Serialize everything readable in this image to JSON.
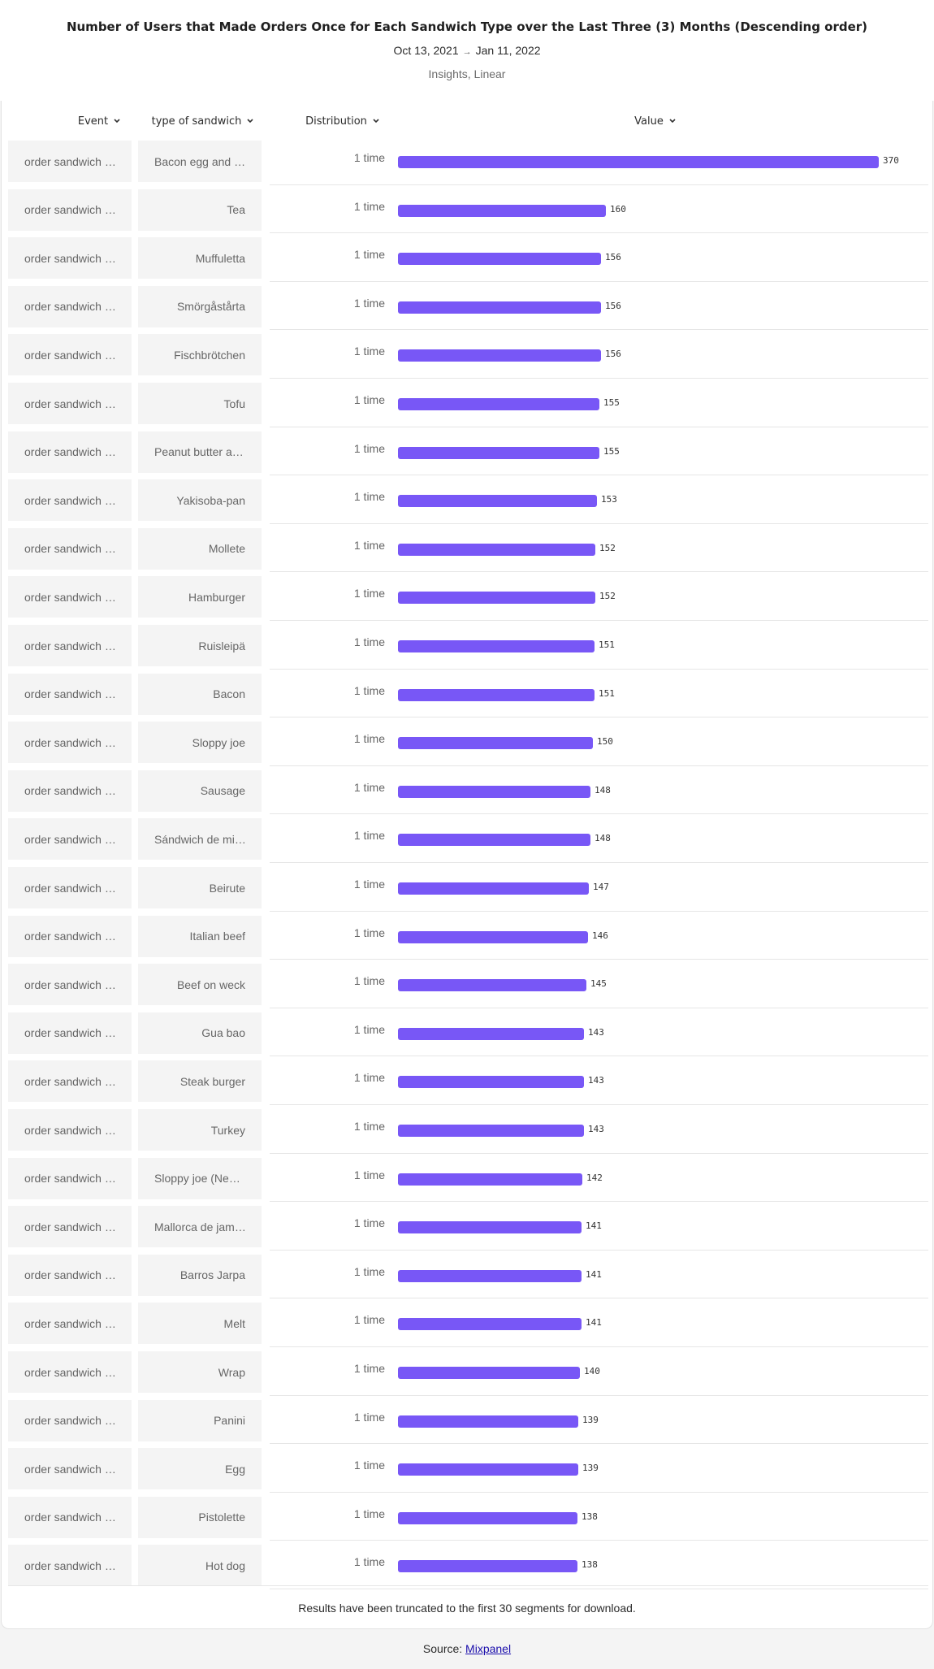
{
  "header": {
    "title": "Number of Users that Made Orders Once for Each Sandwich Type over the Last Three (3) Months (Descending order)",
    "date_start": "Oct 13, 2021",
    "date_end": "Jan 11, 2022",
    "subtitle": "Insights, Linear"
  },
  "columns": {
    "event": "Event",
    "type": "type of sandwich",
    "distribution": "Distribution",
    "value": "Value"
  },
  "footer": {
    "note": "Results have been truncated to the first 30 segments for download.",
    "source_label": "Source:",
    "source_link": "Mixpanel"
  },
  "colors": {
    "bar": "#7857f6"
  },
  "chart_data": {
    "type": "bar",
    "orientation": "horizontal",
    "xlim": [
      0,
      370
    ],
    "rows": [
      {
        "event": "order sandwich …",
        "type": "Bacon egg and …",
        "distribution": "1 time",
        "value": 370
      },
      {
        "event": "order sandwich …",
        "type": "Tea",
        "distribution": "1 time",
        "value": 160
      },
      {
        "event": "order sandwich …",
        "type": "Muffuletta",
        "distribution": "1 time",
        "value": 156
      },
      {
        "event": "order sandwich …",
        "type": "Smörgåstårta",
        "distribution": "1 time",
        "value": 156
      },
      {
        "event": "order sandwich …",
        "type": "Fischbrötchen",
        "distribution": "1 time",
        "value": 156
      },
      {
        "event": "order sandwich …",
        "type": "Tofu",
        "distribution": "1 time",
        "value": 155
      },
      {
        "event": "order sandwich …",
        "type": "Peanut butter a…",
        "distribution": "1 time",
        "value": 155
      },
      {
        "event": "order sandwich …",
        "type": "Yakisoba-pan",
        "distribution": "1 time",
        "value": 153
      },
      {
        "event": "order sandwich …",
        "type": "Mollete",
        "distribution": "1 time",
        "value": 152
      },
      {
        "event": "order sandwich …",
        "type": "Hamburger",
        "distribution": "1 time",
        "value": 152
      },
      {
        "event": "order sandwich …",
        "type": "Ruisleipä",
        "distribution": "1 time",
        "value": 151
      },
      {
        "event": "order sandwich …",
        "type": "Bacon",
        "distribution": "1 time",
        "value": 151
      },
      {
        "event": "order sandwich …",
        "type": "Sloppy joe",
        "distribution": "1 time",
        "value": 150
      },
      {
        "event": "order sandwich …",
        "type": "Sausage",
        "distribution": "1 time",
        "value": 148
      },
      {
        "event": "order sandwich …",
        "type": "Sándwich de mi…",
        "distribution": "1 time",
        "value": 148
      },
      {
        "event": "order sandwich …",
        "type": "Beirute",
        "distribution": "1 time",
        "value": 147
      },
      {
        "event": "order sandwich …",
        "type": "Italian beef",
        "distribution": "1 time",
        "value": 146
      },
      {
        "event": "order sandwich …",
        "type": "Beef on weck",
        "distribution": "1 time",
        "value": 145
      },
      {
        "event": "order sandwich …",
        "type": "Gua bao",
        "distribution": "1 time",
        "value": 143
      },
      {
        "event": "order sandwich …",
        "type": "Steak burger",
        "distribution": "1 time",
        "value": 143
      },
      {
        "event": "order sandwich …",
        "type": "Turkey",
        "distribution": "1 time",
        "value": 143
      },
      {
        "event": "order sandwich …",
        "type": "Sloppy joe (Ne…",
        "distribution": "1 time",
        "value": 142
      },
      {
        "event": "order sandwich …",
        "type": "Mallorca de jam…",
        "distribution": "1 time",
        "value": 141
      },
      {
        "event": "order sandwich …",
        "type": "Barros Jarpa",
        "distribution": "1 time",
        "value": 141
      },
      {
        "event": "order sandwich …",
        "type": "Melt",
        "distribution": "1 time",
        "value": 141
      },
      {
        "event": "order sandwich …",
        "type": "Wrap",
        "distribution": "1 time",
        "value": 140
      },
      {
        "event": "order sandwich …",
        "type": "Panini",
        "distribution": "1 time",
        "value": 139
      },
      {
        "event": "order sandwich …",
        "type": "Egg",
        "distribution": "1 time",
        "value": 139
      },
      {
        "event": "order sandwich …",
        "type": "Pistolette",
        "distribution": "1 time",
        "value": 138
      },
      {
        "event": "order sandwich …",
        "type": "Hot dog",
        "distribution": "1 time",
        "value": 138
      }
    ]
  }
}
